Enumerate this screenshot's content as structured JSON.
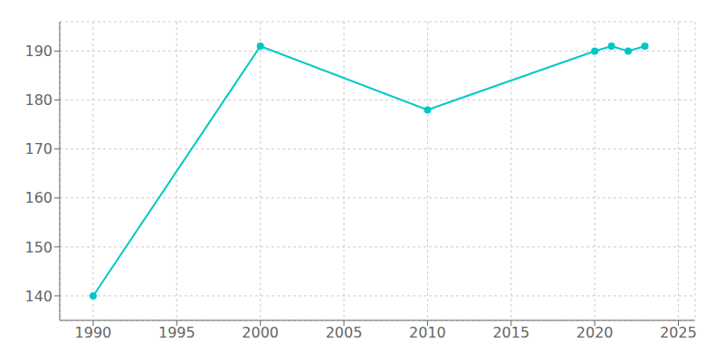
{
  "chart_data": {
    "type": "line",
    "x": [
      1990,
      2000,
      2010,
      2020,
      2021,
      2022,
      2023
    ],
    "values": [
      140,
      191,
      178,
      190,
      191,
      190,
      191
    ],
    "color": "#00C8C8",
    "marker": "circle",
    "xlim": [
      1988,
      2026
    ],
    "ylim": [
      135,
      196
    ],
    "xticks": [
      1990,
      1995,
      2000,
      2005,
      2010,
      2015,
      2020,
      2025
    ],
    "yticks": [
      140,
      150,
      160,
      170,
      180,
      190
    ],
    "grid": true
  }
}
